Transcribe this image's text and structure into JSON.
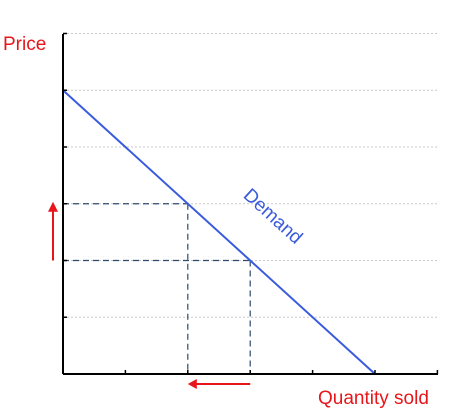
{
  "chart_data": {
    "type": "line",
    "xlabel": "Quantity sold",
    "ylabel": "Price",
    "xlim": [
      0,
      6
    ],
    "ylim": [
      0,
      6
    ],
    "grid": true,
    "series": [
      {
        "name": "Demand",
        "x": [
          0,
          5
        ],
        "y": [
          5,
          0
        ]
      }
    ],
    "guides": [
      {
        "x": 2,
        "y": 3
      },
      {
        "x": 3,
        "y": 2
      }
    ],
    "annotations": [
      {
        "type": "arrow",
        "axis": "y",
        "from": 2.0,
        "to": 3.0
      },
      {
        "type": "arrow",
        "axis": "x",
        "from": 3.0,
        "to": 2.0
      }
    ],
    "colors": {
      "demand": "#3a5bdc",
      "axis": "#000000",
      "grid": "#c8c8c8",
      "guide": "#2e4a6a",
      "arrow": "#e8161b",
      "label": "#e8161b"
    }
  }
}
